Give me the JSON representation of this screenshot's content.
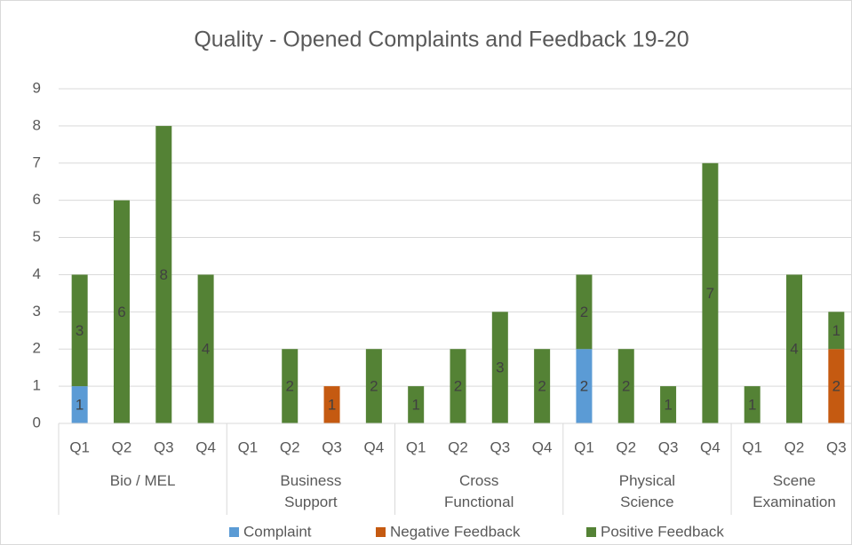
{
  "chart_data": {
    "type": "bar",
    "stacked": true,
    "title": "Quality - Opened Complaints and Feedback 19-20",
    "groups": [
      {
        "name": "Bio / MEL",
        "categories": [
          "Q1",
          "Q2",
          "Q3",
          "Q4"
        ]
      },
      {
        "name": "Business Support",
        "categories": [
          "Q1",
          "Q2",
          "Q3",
          "Q4"
        ]
      },
      {
        "name": "Cross Functional",
        "categories": [
          "Q1",
          "Q2",
          "Q3",
          "Q4"
        ]
      },
      {
        "name": "Physical Science",
        "categories": [
          "Q1",
          "Q2",
          "Q3",
          "Q4"
        ]
      },
      {
        "name": "Scene Examination",
        "categories": [
          "Q1",
          "Q2",
          "Q3"
        ]
      }
    ],
    "series": [
      {
        "name": "Complaint",
        "color": "#5b9bd5",
        "values": [
          1,
          null,
          null,
          null,
          null,
          null,
          null,
          null,
          null,
          null,
          null,
          null,
          2,
          null,
          null,
          null,
          null,
          null,
          null
        ]
      },
      {
        "name": "Negative Feedback",
        "color": "#c55a11",
        "values": [
          null,
          null,
          null,
          null,
          null,
          null,
          1,
          null,
          null,
          null,
          null,
          null,
          null,
          null,
          null,
          null,
          null,
          null,
          2
        ]
      },
      {
        "name": "Positive Feedback",
        "color": "#548235",
        "values": [
          3,
          6,
          8,
          4,
          null,
          2,
          null,
          2,
          1,
          2,
          3,
          2,
          2,
          2,
          1,
          7,
          1,
          4,
          1
        ]
      }
    ],
    "ylim": [
      0,
      9
    ],
    "yticks": [
      0,
      1,
      2,
      3,
      4,
      5,
      6,
      7,
      8,
      9
    ],
    "grid": true,
    "legend": "bottom"
  }
}
